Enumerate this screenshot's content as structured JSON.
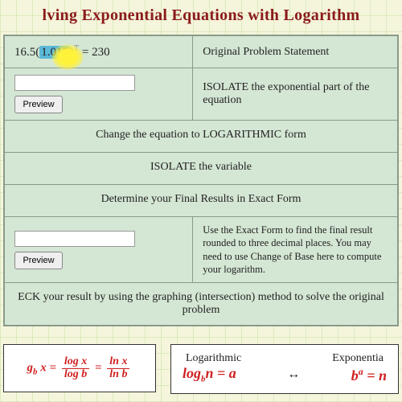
{
  "title": "lving Exponential Equations with Logarithm",
  "rows": {
    "r1": {
      "eq_prefix": "16.5(",
      "eq_highlight": "1.015",
      "eq_suffix_exp": "T",
      "eq_tail": " = 230",
      "desc": "Original Problem Statement"
    },
    "r2": {
      "desc": "ISOLATE the exponential part of the equation",
      "btn": "Preview"
    },
    "r3": {
      "text": "Change the equation to LOGARITHMIC form"
    },
    "r4": {
      "text": "ISOLATE the variable"
    },
    "r5": {
      "text": "Determine your Final Results in Exact Form"
    },
    "r6": {
      "desc": "Use the Exact Form to find the final result rounded to three decimal places. You may need to use Change of Base here to compute your logarithm.",
      "btn": "Preview"
    },
    "r7": {
      "text": "ECK your result by using the graphing (intersection) method to solve the original problem"
    }
  },
  "formula1": {
    "lhs_sub": "b",
    "lhs_var": "x",
    "num1": "log x",
    "den1": "log b",
    "num2": "ln x",
    "den2": "ln b"
  },
  "formula2": {
    "label_left": "Logarithmic",
    "label_right": "Exponentia",
    "log_base": "b",
    "log_arg": "n",
    "log_res": "a",
    "exp_base": "b",
    "exp_pow": "a",
    "exp_res": "n"
  },
  "colors": {
    "title": "#8b1a1a",
    "panel_bg": "#d4e6d4",
    "panel_border": "#899a89",
    "math_red": "#d02020",
    "highlight_blue": "#5bb8d8",
    "highlight_yellow": "#fff23a"
  }
}
